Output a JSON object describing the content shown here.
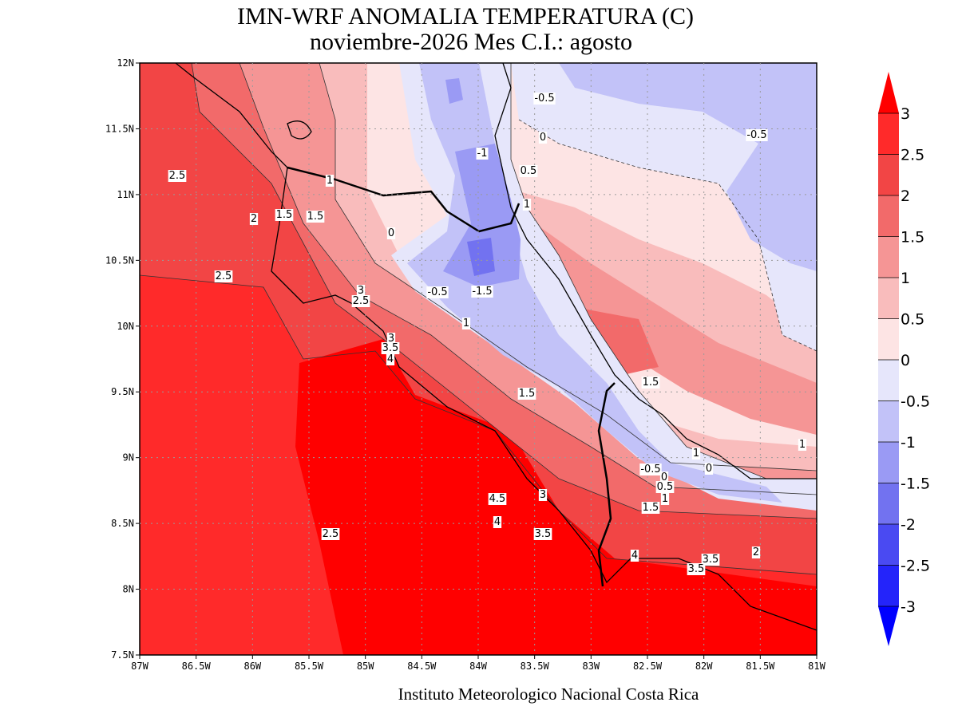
{
  "title": "IMN-WRF  ANOMALIA TEMPERATURA (C)",
  "subtitle": "noviembre-2026 Mes C.I.: agosto",
  "footer": "Instituto Meteorologico Nacional Costa Rica",
  "x_axis": {
    "ticks": [
      "87W",
      "86.5W",
      "86W",
      "85.5W",
      "85W",
      "84.5W",
      "84W",
      "83.5W",
      "83W",
      "82.5W",
      "82W",
      "81.5W",
      "81W"
    ]
  },
  "y_axis": {
    "ticks": [
      "12N",
      "11.5N",
      "11N",
      "10.5N",
      "10N",
      "9.5N",
      "9N",
      "8.5N",
      "8N",
      "7.5N"
    ]
  },
  "colorbar": {
    "labels": [
      "3",
      "2.5",
      "2",
      "1.5",
      "1",
      "0.5",
      "0",
      "-0.5",
      "-1",
      "-1.5",
      "-2",
      "-2.5",
      "-3"
    ],
    "colors": [
      "#ff2a2a",
      "#f24545",
      "#f26a6a",
      "#f59595",
      "#f9bcbc",
      "#fde4e4",
      "#e6e6fb",
      "#c2c2f8",
      "#9a9af4",
      "#7272f0",
      "#4a4af2",
      "#2424fa"
    ],
    "arrow_colors": [
      "#ff0000",
      "#0000ff"
    ],
    "over_color": "#ff0000"
  },
  "contour_labels": [
    "-0.5",
    "0",
    "-0.5",
    "-1",
    "0.5",
    "1",
    "2.5",
    "1",
    "2",
    "1.5",
    "1.5",
    "0",
    "2.5",
    "-1.5",
    "-0.5",
    "3",
    "2.5",
    "1",
    "3",
    "3.5",
    "4",
    "1.5",
    "1.5",
    "1",
    "1",
    "0",
    "-0.5",
    "0",
    "0.5",
    "1",
    "1.5",
    "4.5",
    "3",
    "4",
    "3.5",
    "2.5",
    "2",
    "4",
    "3.5",
    "3.5"
  ]
}
